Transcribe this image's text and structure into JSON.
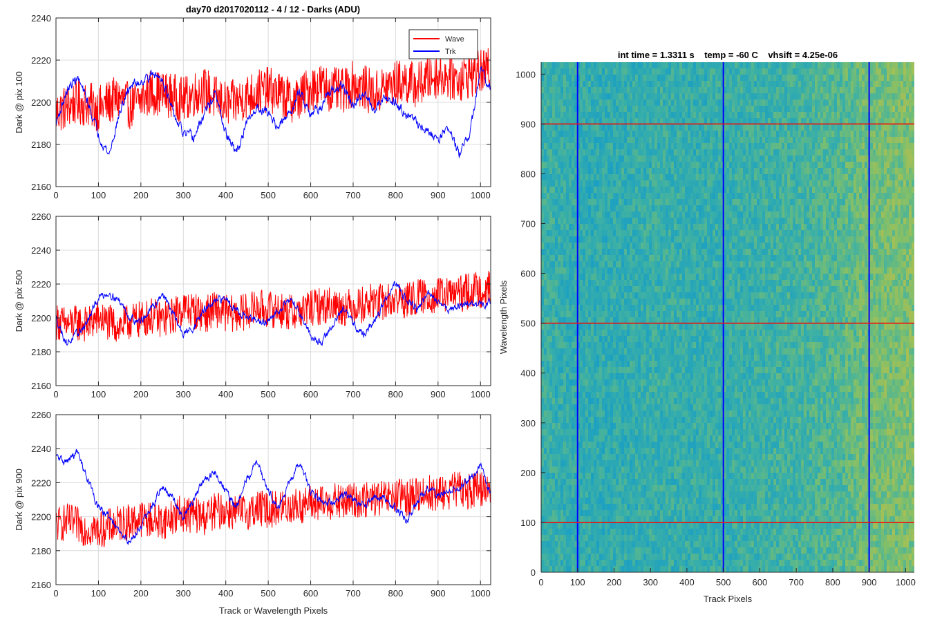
{
  "figure": {
    "left_title": "day70 d2017020112 - 4 / 12 - Darks (ADU)",
    "right_title": "int time = 1.3311 s    temp = -60 C    vhsift = 4.25e-06"
  },
  "chart_data": [
    {
      "type": "line",
      "title": "day70 d2017020112 - 4 / 12 - Darks (ADU)",
      "xlabel": "",
      "ylabel": "Dark @ pix 100",
      "xlim": [
        0,
        1024
      ],
      "ylim": [
        2160,
        2240
      ],
      "xticks": [
        0,
        100,
        200,
        300,
        400,
        500,
        600,
        700,
        800,
        900,
        1000
      ],
      "yticks": [
        2160,
        2180,
        2200,
        2220,
        2240
      ],
      "grid": true,
      "legend": "top-right",
      "series": [
        {
          "name": "Wave",
          "color": "#ff0000",
          "x": [
            0,
            25,
            50,
            75,
            100,
            125,
            150,
            175,
            200,
            225,
            250,
            275,
            300,
            325,
            350,
            375,
            400,
            425,
            450,
            475,
            500,
            525,
            550,
            575,
            600,
            625,
            650,
            675,
            700,
            725,
            750,
            775,
            800,
            825,
            850,
            875,
            900,
            925,
            950,
            975,
            1000,
            1023
          ],
          "values": [
            2195,
            2198,
            2200,
            2199,
            2197,
            2200,
            2202,
            2198,
            2201,
            2205,
            2204,
            2203,
            2201,
            2204,
            2206,
            2202,
            2199,
            2200,
            2203,
            2205,
            2206,
            2204,
            2201,
            2202,
            2207,
            2208,
            2206,
            2205,
            2209,
            2207,
            2204,
            2207,
            2209,
            2210,
            2208,
            2211,
            2213,
            2212,
            2211,
            2213,
            2214,
            2215
          ]
        },
        {
          "name": "Trk",
          "color": "#0000ff",
          "x": [
            0,
            25,
            50,
            75,
            100,
            125,
            150,
            175,
            200,
            225,
            250,
            275,
            300,
            325,
            350,
            375,
            400,
            425,
            450,
            475,
            500,
            525,
            550,
            575,
            600,
            625,
            650,
            675,
            700,
            725,
            750,
            775,
            800,
            825,
            850,
            875,
            900,
            925,
            950,
            975,
            1000,
            1023
          ],
          "values": [
            2190,
            2205,
            2212,
            2200,
            2185,
            2175,
            2195,
            2208,
            2210,
            2213,
            2212,
            2195,
            2185,
            2183,
            2195,
            2204,
            2185,
            2176,
            2190,
            2198,
            2195,
            2188,
            2195,
            2205,
            2195,
            2198,
            2205,
            2208,
            2198,
            2204,
            2197,
            2203,
            2200,
            2195,
            2190,
            2186,
            2183,
            2188,
            2175,
            2185,
            2215,
            2208
          ]
        }
      ]
    },
    {
      "type": "line",
      "xlabel": "",
      "ylabel": "Dark @ pix 500",
      "xlim": [
        0,
        1024
      ],
      "ylim": [
        2160,
        2260
      ],
      "xticks": [
        0,
        100,
        200,
        300,
        400,
        500,
        600,
        700,
        800,
        900,
        1000
      ],
      "yticks": [
        2160,
        2180,
        2200,
        2220,
        2240,
        2260
      ],
      "grid": true,
      "series": [
        {
          "name": "Wave",
          "color": "#ff0000",
          "x": [
            0,
            25,
            50,
            75,
            100,
            125,
            150,
            175,
            200,
            225,
            250,
            275,
            300,
            325,
            350,
            375,
            400,
            425,
            450,
            475,
            500,
            525,
            550,
            575,
            600,
            625,
            650,
            675,
            700,
            725,
            750,
            775,
            800,
            825,
            850,
            875,
            900,
            925,
            950,
            975,
            1000,
            1023
          ],
          "values": [
            2198,
            2196,
            2197,
            2196,
            2200,
            2197,
            2195,
            2198,
            2199,
            2201,
            2199,
            2201,
            2206,
            2204,
            2202,
            2205,
            2203,
            2202,
            2204,
            2206,
            2205,
            2205,
            2203,
            2204,
            2206,
            2207,
            2208,
            2206,
            2207,
            2208,
            2210,
            2209,
            2211,
            2210,
            2212,
            2213,
            2213,
            2214,
            2214,
            2216,
            2217,
            2217
          ]
        },
        {
          "name": "Trk",
          "color": "#0000ff",
          "x": [
            0,
            25,
            50,
            75,
            100,
            125,
            150,
            175,
            200,
            225,
            250,
            275,
            300,
            325,
            350,
            375,
            400,
            425,
            450,
            475,
            500,
            525,
            550,
            575,
            600,
            625,
            650,
            675,
            700,
            725,
            750,
            775,
            800,
            825,
            850,
            875,
            900,
            925,
            950,
            975,
            1000,
            1023
          ],
          "values": [
            2200,
            2185,
            2190,
            2198,
            2212,
            2215,
            2210,
            2200,
            2198,
            2205,
            2215,
            2203,
            2190,
            2195,
            2205,
            2209,
            2212,
            2205,
            2200,
            2198,
            2197,
            2205,
            2212,
            2203,
            2190,
            2185,
            2195,
            2205,
            2197,
            2190,
            2198,
            2210,
            2220,
            2212,
            2205,
            2214,
            2210,
            2205,
            2207,
            2209,
            2207,
            2210
          ]
        }
      ]
    },
    {
      "type": "line",
      "xlabel": "Track or Wavelength Pixels",
      "ylabel": "Dark @ pix 900",
      "xlim": [
        0,
        1024
      ],
      "ylim": [
        2160,
        2260
      ],
      "xticks": [
        0,
        100,
        200,
        300,
        400,
        500,
        600,
        700,
        800,
        900,
        1000
      ],
      "yticks": [
        2160,
        2180,
        2200,
        2220,
        2240,
        2260
      ],
      "grid": true,
      "series": [
        {
          "name": "Wave",
          "color": "#ff0000",
          "x": [
            0,
            25,
            50,
            75,
            100,
            125,
            150,
            175,
            200,
            225,
            250,
            275,
            300,
            325,
            350,
            375,
            400,
            425,
            450,
            475,
            500,
            525,
            550,
            575,
            600,
            625,
            650,
            675,
            700,
            725,
            750,
            775,
            800,
            825,
            850,
            875,
            900,
            925,
            950,
            975,
            1000,
            1023
          ],
          "values": [
            2195,
            2197,
            2195,
            2193,
            2192,
            2194,
            2196,
            2197,
            2199,
            2198,
            2197,
            2200,
            2202,
            2201,
            2200,
            2203,
            2204,
            2202,
            2203,
            2205,
            2204,
            2205,
            2206,
            2206,
            2208,
            2207,
            2209,
            2208,
            2210,
            2209,
            2211,
            2210,
            2212,
            2211,
            2213,
            2214,
            2213,
            2215,
            2216,
            2215,
            2217,
            2218
          ]
        },
        {
          "name": "Trk",
          "color": "#0000ff",
          "x": [
            0,
            25,
            50,
            75,
            100,
            125,
            150,
            175,
            200,
            225,
            250,
            275,
            300,
            325,
            350,
            375,
            400,
            425,
            450,
            475,
            500,
            525,
            550,
            575,
            600,
            625,
            650,
            675,
            700,
            725,
            750,
            775,
            800,
            825,
            850,
            875,
            900,
            925,
            950,
            975,
            1000,
            1023
          ],
          "values": [
            2235,
            2232,
            2238,
            2222,
            2205,
            2200,
            2190,
            2185,
            2195,
            2205,
            2218,
            2210,
            2200,
            2210,
            2222,
            2226,
            2215,
            2205,
            2222,
            2233,
            2215,
            2205,
            2220,
            2232,
            2215,
            2210,
            2208,
            2213,
            2210,
            2207,
            2212,
            2210,
            2205,
            2198,
            2208,
            2218,
            2212,
            2215,
            2218,
            2222,
            2230,
            2214
          ]
        }
      ]
    },
    {
      "type": "heatmap",
      "title": "int time = 1.3311 s    temp = -60 C    vhsift = 4.25e-06",
      "xlabel": "Track Pixels",
      "ylabel": "Wavelength Pixels",
      "xlim": [
        0,
        1024
      ],
      "ylim": [
        0,
        1024
      ],
      "xticks": [
        0,
        100,
        200,
        300,
        400,
        500,
        600,
        700,
        800,
        900,
        1000
      ],
      "yticks": [
        0,
        100,
        200,
        300,
        400,
        500,
        600,
        700,
        800,
        900,
        1000
      ],
      "colormap": [
        "#0f7ac8",
        "#1a9fc4",
        "#3cb0a6",
        "#7ebf6c",
        "#c4c045"
      ],
      "column_means": [
        0.46,
        0.44,
        0.43,
        0.43,
        0.42,
        0.42,
        0.43,
        0.43,
        0.44,
        0.45,
        0.46,
        0.45,
        0.44,
        0.44,
        0.45,
        0.46,
        0.46,
        0.47,
        0.48,
        0.49,
        0.5,
        0.51,
        0.53,
        0.55,
        0.57,
        0.58,
        0.63,
        0.68,
        0.7,
        0.72,
        0.73,
        0.74
      ],
      "overlay_lines": [
        {
          "orientation": "vertical",
          "value": 100,
          "color": "#0000ff"
        },
        {
          "orientation": "vertical",
          "value": 500,
          "color": "#0000ff"
        },
        {
          "orientation": "vertical",
          "value": 900,
          "color": "#0000ff"
        },
        {
          "orientation": "horizontal",
          "value": 100,
          "color": "#ff0000"
        },
        {
          "orientation": "horizontal",
          "value": 500,
          "color": "#ff0000"
        },
        {
          "orientation": "horizontal",
          "value": 900,
          "color": "#ff0000"
        }
      ]
    }
  ]
}
